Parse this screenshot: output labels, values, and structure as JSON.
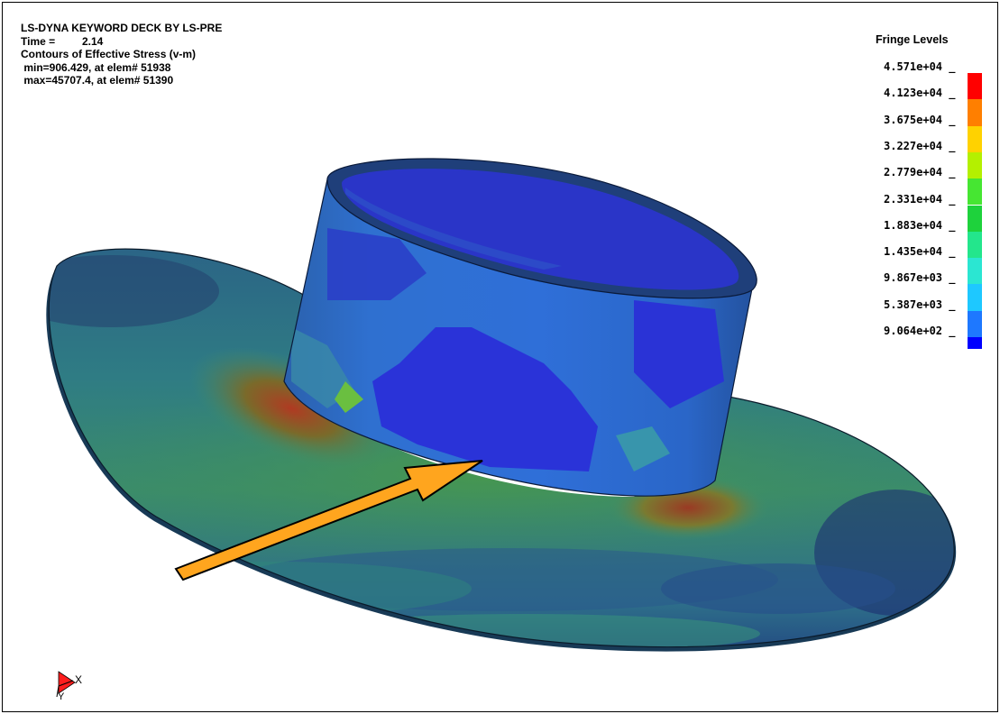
{
  "header": {
    "line1": "LS-DYNA KEYWORD DECK BY LS-PRE",
    "time_label": "Time =",
    "time_value": "2.14",
    "contour_title": "Contours of Effective Stress (v-m)",
    "min_line": " min=906.429, at elem# 51938",
    "max_line": " max=45707.4, at elem# 51390"
  },
  "legend": {
    "title": "Fringe Levels",
    "levels": [
      "4.571e+04",
      "4.123e+04",
      "3.675e+04",
      "3.227e+04",
      "2.779e+04",
      "2.331e+04",
      "1.883e+04",
      "1.435e+04",
      "9.867e+03",
      "5.387e+03",
      "9.064e+02"
    ],
    "colors": [
      "#ff0000",
      "#ff7f00",
      "#ffd200",
      "#b4f000",
      "#46e632",
      "#1ed23c",
      "#23e68c",
      "#2be6d2",
      "#1ec8ff",
      "#1e78ff",
      "#0000ff"
    ]
  },
  "triad": {
    "x_label": "X",
    "y_label": "Y"
  },
  "colors": {
    "arrow_fill": "#ffa51e",
    "arrow_stroke": "#000000",
    "brim_base": "#2f7a8c",
    "cylinder_base": "#2c6bd6"
  }
}
